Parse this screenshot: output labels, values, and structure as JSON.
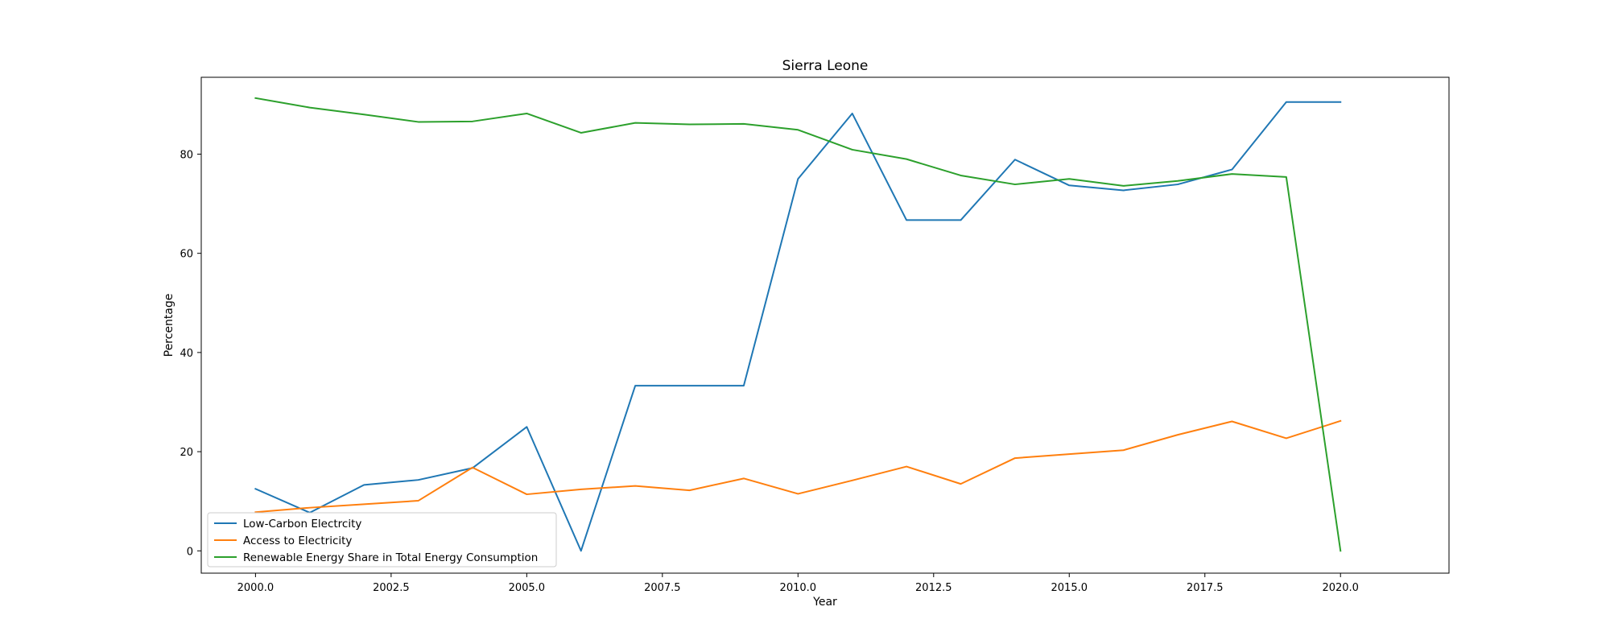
{
  "chart_data": {
    "type": "line",
    "title": "Sierra Leone",
    "xlabel": "Year",
    "ylabel": "Percentage",
    "xlim": [
      1999.0,
      2022.0
    ],
    "ylim": [
      -4.5,
      95.5
    ],
    "xticks": [
      2000.0,
      2002.5,
      2005.0,
      2007.5,
      2010.0,
      2012.5,
      2015.0,
      2017.5,
      2020.0
    ],
    "xtick_labels": [
      "2000.0",
      "2002.5",
      "2005.0",
      "2007.5",
      "2010.0",
      "2012.5",
      "2015.0",
      "2017.5",
      "2020.0"
    ],
    "yticks": [
      0,
      20,
      40,
      60,
      80
    ],
    "ytick_labels": [
      "0",
      "20",
      "40",
      "60",
      "80"
    ],
    "grid": false,
    "legend_position": "lower-left",
    "x": [
      2000,
      2001,
      2002,
      2003,
      2004,
      2005,
      2006,
      2007,
      2008,
      2009,
      2010,
      2011,
      2012,
      2013,
      2014,
      2015,
      2016,
      2017,
      2018,
      2019,
      2020
    ],
    "series": [
      {
        "name": "Low-Carbon Electrcity",
        "color": "#1f77b4",
        "values": [
          12.5,
          7.7,
          13.3,
          14.3,
          16.7,
          25.0,
          0.0,
          33.3,
          33.3,
          33.3,
          75.0,
          88.2,
          66.7,
          66.7,
          78.9,
          73.7,
          72.7,
          73.9,
          76.9,
          90.5,
          90.5
        ]
      },
      {
        "name": "Access to Electricity",
        "color": "#ff7f0e",
        "values": [
          7.8,
          8.7,
          9.4,
          10.1,
          16.8,
          11.4,
          12.4,
          13.1,
          12.2,
          14.6,
          11.5,
          14.2,
          17.0,
          13.5,
          18.7,
          19.5,
          20.3,
          23.4,
          26.1,
          22.7,
          26.2
        ]
      },
      {
        "name": "Renewable Energy Share in Total Energy Consumption",
        "color": "#2ca02c",
        "values": [
          91.3,
          89.4,
          88.0,
          86.5,
          86.6,
          88.2,
          84.3,
          86.3,
          86.0,
          86.1,
          84.9,
          80.9,
          79.0,
          75.7,
          73.9,
          75.0,
          73.6,
          74.6,
          76.0,
          75.4,
          0.0
        ]
      }
    ]
  }
}
